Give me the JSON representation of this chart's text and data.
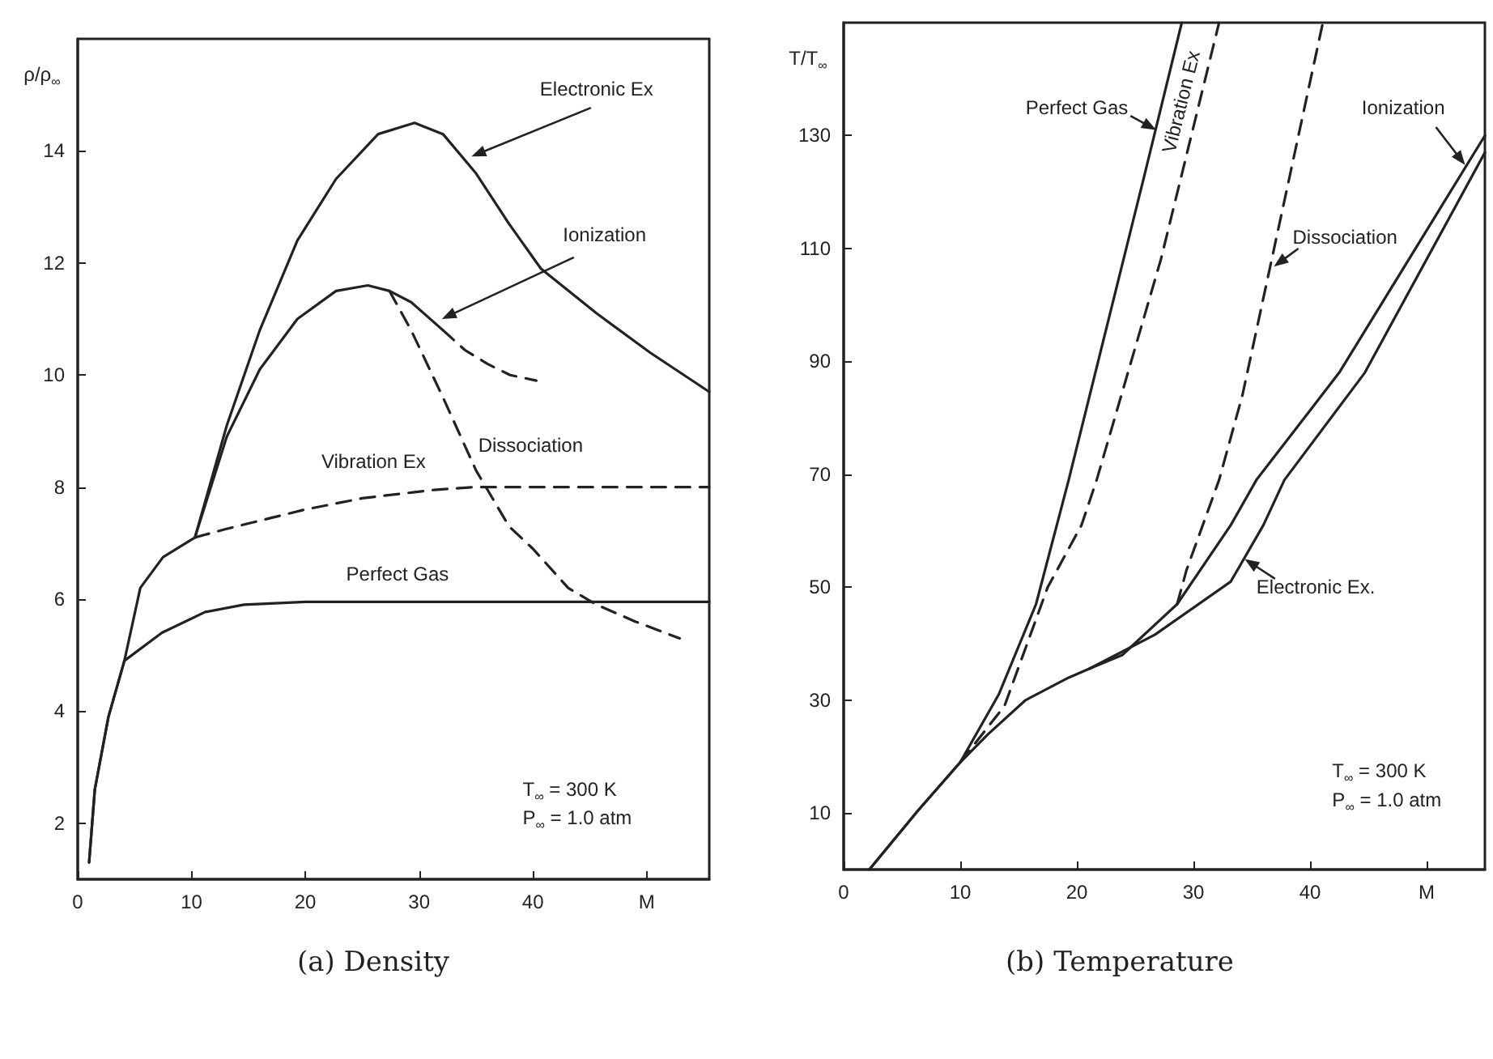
{
  "chart_data": [
    {
      "type": "line",
      "title": "(a) Density",
      "ylabel": "ρ/ρ$_{∞}$",
      "annotations": [
        "T$_{∞}$ = 300 K",
        "P$_{∞}$ = 1.0 atm"
      ],
      "marker": "none",
      "xlim": [
        0,
        55.5
      ],
      "xticks": [
        0,
        10,
        20,
        30,
        40,
        {
          "value": 50,
          "label": "M"
        }
      ],
      "ylim": [
        1,
        16
      ],
      "yticks": [
        2,
        4,
        6,
        8,
        10,
        12,
        14
      ],
      "series": [
        {
          "name": "Perfect Gas",
          "color": "#222222",
          "line_style": "solid",
          "x": [
            1,
            1.5,
            2.7,
            4.1,
            7.4,
            11.2,
            14.6,
            20,
            30,
            40,
            50,
            55.5
          ],
          "values": [
            1.3,
            2.6,
            3.9,
            4.9,
            5.4,
            5.77,
            5.9,
            5.95,
            5.95,
            5.95,
            5.95,
            5.95
          ]
        },
        {
          "name": "Vibration Ex",
          "color": "#222222",
          "line_style": "dashed",
          "x": [
            10.3,
            13,
            17,
            20,
            25,
            31.3,
            35,
            45,
            55.5
          ],
          "values": [
            7.1,
            7.25,
            7.45,
            7.6,
            7.8,
            7.95,
            8.0,
            8.0,
            8.0
          ]
        },
        {
          "name": "Dissociation",
          "color": "#222222",
          "line_style": "dashed",
          "x": [
            27.4,
            29.3,
            32.1,
            35,
            37.9,
            40,
            43.1,
            45.6,
            49,
            52.9
          ],
          "values": [
            11.5,
            10.8,
            9.6,
            8.3,
            7.3,
            6.9,
            6.2,
            5.9,
            5.6,
            5.3
          ]
        },
        {
          "name": "Ionization",
          "color": "#222222",
          "line_style": "solid",
          "x": [
            10.3,
            13.1,
            16,
            19.3,
            22.7,
            25.5,
            27.4,
            29.3,
            32.1
          ],
          "values": [
            7.1,
            8.9,
            10.1,
            11.0,
            11.5,
            11.6,
            11.5,
            11.3,
            10.8
          ]
        },
        {
          "color": "#222222",
          "line_style": "dashed",
          "x": [
            32.1,
            34,
            36,
            38,
            40.3
          ],
          "values": [
            10.8,
            10.45,
            10.2,
            10.0,
            9.9
          ]
        },
        {
          "name": "Electronic Ex",
          "color": "#222222",
          "line_style": "solid",
          "x": [
            1,
            1.5,
            2.7,
            4.1,
            5.5,
            7.5,
            10.3,
            13.1,
            16,
            19.3,
            22.7,
            26.4,
            29.6,
            32.1,
            35,
            37.9,
            40.7,
            45.6,
            50.3,
            55.5
          ],
          "values": [
            1.3,
            2.6,
            3.9,
            4.9,
            6.2,
            6.75,
            7.1,
            9.1,
            10.8,
            12.4,
            13.5,
            14.3,
            14.5,
            14.3,
            13.6,
            12.7,
            11.9,
            11.1,
            10.4,
            9.7
          ]
        }
      ]
    },
    {
      "type": "line",
      "title": "(b) Temperature",
      "ylabel": "T/T$_{∞}$",
      "annotations": [
        "T$_{∞}$ = 300 K",
        "P$_{∞}$ = 1.0 atm"
      ],
      "marker": "none",
      "xlim": [
        0,
        55
      ],
      "xticks": [
        0,
        10,
        20,
        30,
        40,
        {
          "value": 50,
          "label": "M"
        }
      ],
      "ylim": [
        0,
        150
      ],
      "yticks": [
        10,
        30,
        50,
        70,
        90,
        110,
        130
      ],
      "series": [
        {
          "name": "Perfect Gas",
          "color": "#222222",
          "line_style": "solid",
          "x": [
            2.2,
            6.4,
            10,
            13.3,
            16.5,
            19.3,
            25.8,
            29
          ],
          "values": [
            0,
            10.5,
            19,
            31,
            47,
            69,
            123,
            150
          ]
        },
        {
          "name": "Vibration Ex",
          "color": "#222222",
          "line_style": "dashed",
          "x": [
            10,
            13.8,
            17.5,
            20.4,
            21.7,
            27.2,
            32.2
          ],
          "values": [
            19,
            29,
            50,
            61,
            69,
            108,
            150
          ]
        },
        {
          "name": "Dissociation",
          "color": "#222222",
          "line_style": "dashed",
          "x": [
            28.6,
            29.4,
            30.8,
            32.2,
            34.2,
            41.1
          ],
          "values": [
            47,
            53,
            61,
            69,
            84,
            150
          ]
        },
        {
          "name": "Ionization",
          "color": "#222222",
          "line_style": "solid",
          "x": [
            2.2,
            6.4,
            10,
            12.4,
            15.6,
            19.3,
            21.1,
            23.9,
            28.6,
            33.2,
            35.4,
            42.5,
            55
          ],
          "values": [
            0,
            10.5,
            19,
            24,
            30,
            34,
            35.6,
            38,
            47,
            61,
            69,
            88,
            130
          ]
        },
        {
          "name": "Electronic Ex.",
          "color": "#222222",
          "line_style": "solid",
          "x": [
            21.1,
            26.7,
            33.2,
            36,
            37.8,
            44.7,
            55
          ],
          "values": [
            35.6,
            41.6,
            51,
            61,
            69,
            88,
            127
          ]
        }
      ]
    }
  ]
}
